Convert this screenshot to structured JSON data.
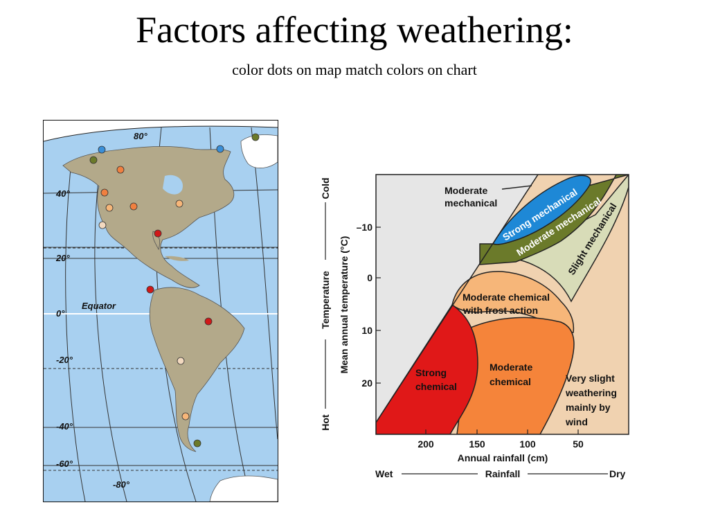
{
  "slide": {
    "title": "Factors affecting weathering:",
    "subtitle": "color dots on map match colors on chart"
  },
  "map": {
    "lat_labels": [
      "80°",
      "40°",
      "20°",
      "0°",
      "-20°",
      "-40°",
      "-60°",
      "-80°"
    ],
    "equator_label": "Equator",
    "colors": {
      "ocean": "#a8d0f0",
      "land": "#b3a98a",
      "grey": "#e8e8e8"
    },
    "dots": [
      {
        "zone": "strong-mechanical",
        "color": "#3a8fd8"
      },
      {
        "zone": "strong-mechanical",
        "color": "#3a8fd8"
      },
      {
        "zone": "moderate-mechanical",
        "color": "#6b7a2a"
      },
      {
        "zone": "moderate-mechanical",
        "color": "#6b7a2a"
      },
      {
        "zone": "moderate-mechanical",
        "color": "#6b7a2a"
      },
      {
        "zone": "moderate-chemical",
        "color": "#f08040"
      },
      {
        "zone": "moderate-chemical",
        "color": "#f08040"
      },
      {
        "zone": "moderate-chemical",
        "color": "#f08040"
      },
      {
        "zone": "frost-action",
        "color": "#f6b679"
      },
      {
        "zone": "frost-action",
        "color": "#f6b679"
      },
      {
        "zone": "frost-action",
        "color": "#f6b679"
      },
      {
        "zone": "very-slight",
        "color": "#f2d9bf"
      },
      {
        "zone": "very-slight",
        "color": "#f2d9bf"
      },
      {
        "zone": "strong-chemical",
        "color": "#d01818"
      },
      {
        "zone": "strong-chemical",
        "color": "#d01818"
      },
      {
        "zone": "strong-chemical",
        "color": "#d01818"
      }
    ]
  },
  "chart": {
    "y_axis": {
      "title": "Mean annual temperature (°C)",
      "scale_title": "Temperature",
      "hot": "Hot",
      "cold": "Cold",
      "ticks": [
        "–10",
        "0",
        "10",
        "20"
      ]
    },
    "x_axis": {
      "title": "Annual rainfall (cm)",
      "scale_title": "Rainfall",
      "wet": "Wet",
      "dry": "Dry",
      "ticks": [
        "200",
        "150",
        "100",
        "50"
      ]
    },
    "regions": {
      "moderate_mechanical_top": "Moderate mechanical",
      "moderate_mechanical_top_l1": "Moderate",
      "moderate_mechanical_top_l2": "mechanical",
      "strong_mechanical": "Strong mechanical",
      "moderate_mechanical_band": "Moderate mechanical",
      "slight_mechanical": "Slight mechanical",
      "moderate_chemical_frost_l1": "Moderate chemical",
      "moderate_chemical_frost_l2": "with frost action",
      "strong_chemical_l1": "Strong",
      "strong_chemical_l2": "chemical",
      "moderate_chemical_l1": "Moderate",
      "moderate_chemical_l2": "chemical",
      "very_slight_l1": "Very slight",
      "very_slight_l2": "weathering",
      "very_slight_l3": "mainly by",
      "very_slight_l4": "wind"
    },
    "colors": {
      "strong_mechanical": "#1e88d6",
      "moderate_mechanical": "#6b7a2a",
      "slight_mechanical": "#d8dcb8",
      "frost_action": "#f6b679",
      "strong_chemical": "#e01818",
      "moderate_chemical": "#f5843a",
      "very_slight": "#f0d2b0",
      "none": "#e6e6e6"
    }
  }
}
